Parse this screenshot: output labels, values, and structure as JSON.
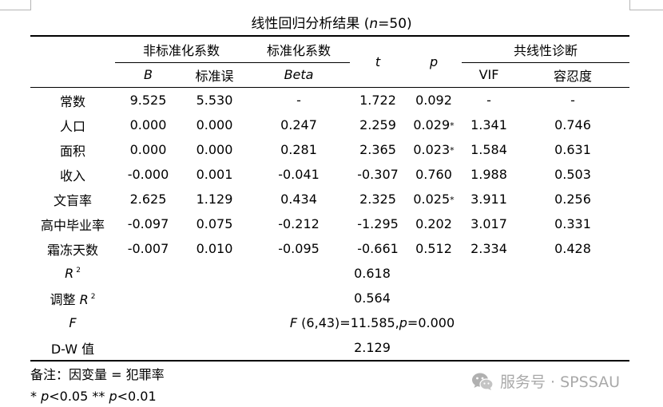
{
  "caption": {
    "text": "线性回归分析结果 (",
    "var": "n",
    "value": "=50)"
  },
  "headers": {
    "group_unstd": "非标准化系数",
    "group_std": "标准化系数",
    "t": "t",
    "p": "p",
    "group_collinearity": "共线性诊断",
    "B": "B",
    "se": "标准误",
    "beta": "Beta",
    "vif": "VIF",
    "tolerance": "容忍度"
  },
  "rows": [
    {
      "name": "常数",
      "B": "9.525",
      "se": "5.530",
      "beta": "-",
      "t": "1.722",
      "p": "0.092",
      "star": "",
      "vif": "-",
      "tol": "-"
    },
    {
      "name": "人口",
      "B": "0.000",
      "se": "0.000",
      "beta": "0.247",
      "t": "2.259",
      "p": "0.029",
      "star": "*",
      "vif": "1.341",
      "tol": "0.746"
    },
    {
      "name": "面积",
      "B": "0.000",
      "se": "0.000",
      "beta": "0.281",
      "t": "2.365",
      "p": "0.023",
      "star": "*",
      "vif": "1.584",
      "tol": "0.631"
    },
    {
      "name": "收入",
      "B": "-0.000",
      "se": "0.001",
      "beta": "-0.041",
      "t": "-0.307",
      "p": "0.760",
      "star": "",
      "vif": "1.988",
      "tol": "0.503"
    },
    {
      "name": "文盲率",
      "B": "2.625",
      "se": "1.129",
      "beta": "0.434",
      "t": "2.325",
      "p": "0.025",
      "star": "*",
      "vif": "3.911",
      "tol": "0.256"
    },
    {
      "name": "高中毕业率",
      "B": "-0.097",
      "se": "0.075",
      "beta": "-0.212",
      "t": "-1.295",
      "p": "0.202",
      "star": "",
      "vif": "3.017",
      "tol": "0.331"
    },
    {
      "name": "霜冻天数",
      "B": "-0.007",
      "se": "0.010",
      "beta": "-0.095",
      "t": "-0.661",
      "p": "0.512",
      "star": "",
      "vif": "2.334",
      "tol": "0.428"
    }
  ],
  "stats": {
    "r2_label": "R",
    "r2_sup": "2",
    "r2_value": "0.618",
    "adj_prefix": "调整 ",
    "adj_label": "R",
    "adj_sup": "2",
    "adj_value": "0.564",
    "f_label": "F",
    "f_value_f": "F",
    "f_value_mid": " (6,43)=11.585,",
    "f_value_p": "p",
    "f_value_end": "=0.000",
    "dw_label": "D-W 值",
    "dw_value": "2.129"
  },
  "notes": {
    "note1": "备注：因变量 = 犯罪率",
    "note2_star1": "* ",
    "note2_p1": "p",
    "note2_mid": "<0.05 ** ",
    "note2_p2": "p",
    "note2_end": "<0.01"
  },
  "watermark": {
    "text": "服务号 · SPSSAU",
    "icon": "wechat-icon"
  }
}
